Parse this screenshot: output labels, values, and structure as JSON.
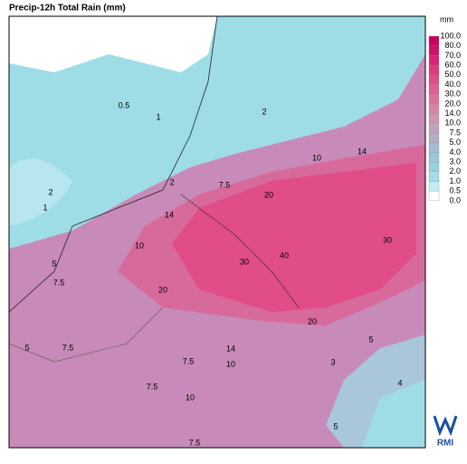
{
  "header": {
    "title": "Precip-12h Total Rain (mm)"
  },
  "legend": {
    "unit": "mm",
    "labels": [
      "100.0",
      "80.0",
      "70.0",
      "60.0",
      "50.0",
      "40.0",
      "30.0",
      "20.0",
      "14.0",
      "10.0",
      "7.5",
      "5.0",
      "4.0",
      "3.0",
      "2.0",
      "1.0",
      "0.5",
      "0.0"
    ],
    "colors": [
      "#c8005e",
      "#d10f69",
      "#d82474",
      "#dd3a7f",
      "#e04c88",
      "#e05f92",
      "#dd729d",
      "#d785a8",
      "#cc95b2",
      "#c0a3bc",
      "#b2afc5",
      "#a6bbcf",
      "#9cc7d8",
      "#98d2e0",
      "#a2dde8",
      "#c2edf2",
      "#ffffff"
    ]
  },
  "contours": [
    "0.5",
    "1",
    "2",
    "1",
    "2",
    "2",
    "7.5",
    "20",
    "14",
    "10",
    "14",
    "30",
    "40",
    "30",
    "20",
    "10",
    "7.5",
    "5",
    "5",
    "7.5",
    "7.5",
    "14",
    "10",
    "10",
    "7.5",
    "7.5",
    "3",
    "4",
    "5",
    "5",
    "20"
  ],
  "logo": "RMI"
}
